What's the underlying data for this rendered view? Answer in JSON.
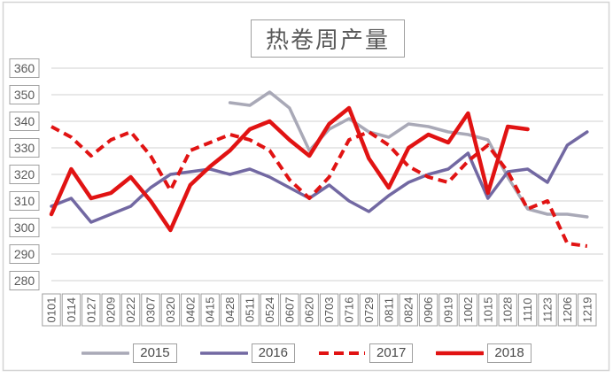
{
  "chart": {
    "title": "热卷周产量"
  },
  "chart_data": {
    "type": "line",
    "title": "热卷周产量",
    "xlabel": "",
    "ylabel": "",
    "categories": [
      "0101",
      "0114",
      "0127",
      "0209",
      "0222",
      "0307",
      "0320",
      "0402",
      "0415",
      "0428",
      "0511",
      "0524",
      "0607",
      "0620",
      "0703",
      "0716",
      "0729",
      "0811",
      "0824",
      "0906",
      "0919",
      "1002",
      "1015",
      "1028",
      "1110",
      "1123",
      "1206",
      "1219"
    ],
    "y_axis": {
      "min": 280,
      "max": 360,
      "step": 10,
      "ticks": [
        360,
        350,
        340,
        330,
        320,
        310,
        300,
        290,
        280
      ]
    },
    "grid": true,
    "legend_position": "bottom",
    "series": [
      {
        "name": "2015",
        "color": "#a9a9b7",
        "style": "solid",
        "width": 3.5,
        "values": [
          null,
          null,
          null,
          null,
          null,
          null,
          null,
          null,
          null,
          347,
          346,
          351,
          345,
          329,
          337,
          341,
          336,
          334,
          339,
          338,
          336,
          335,
          333,
          319,
          307,
          305,
          305,
          304
        ]
      },
      {
        "name": "2016",
        "color": "#7268a2",
        "style": "solid",
        "width": 3.5,
        "values": [
          308,
          311,
          302,
          305,
          308,
          315,
          320,
          321,
          322,
          320,
          322,
          319,
          315,
          311,
          316,
          310,
          306,
          312,
          317,
          320,
          322,
          328,
          311,
          321,
          322,
          317,
          331,
          336
        ]
      },
      {
        "name": "2017",
        "color": "#e11313",
        "style": "dashed",
        "width": 4,
        "values": [
          338,
          334,
          327,
          333,
          336,
          327,
          314,
          329,
          332,
          335,
          333,
          329,
          318,
          311,
          319,
          333,
          336,
          331,
          323,
          319,
          317,
          325,
          331,
          321,
          307,
          310,
          294,
          293
        ]
      },
      {
        "name": "2018",
        "color": "#e11313",
        "style": "solid",
        "width": 4.5,
        "values": [
          305,
          322,
          311,
          313,
          319,
          310,
          299,
          316,
          323,
          329,
          337,
          340,
          333,
          327,
          339,
          345,
          326,
          315,
          330,
          335,
          332,
          343,
          313,
          338,
          337,
          null,
          null,
          null
        ]
      }
    ]
  },
  "colors": {
    "gridline": "#d9d9d9",
    "tick_box_border": "#a0a0a0",
    "tick_text": "#595959",
    "outer_border": "#d4d4d4",
    "title_text": "#595959"
  }
}
